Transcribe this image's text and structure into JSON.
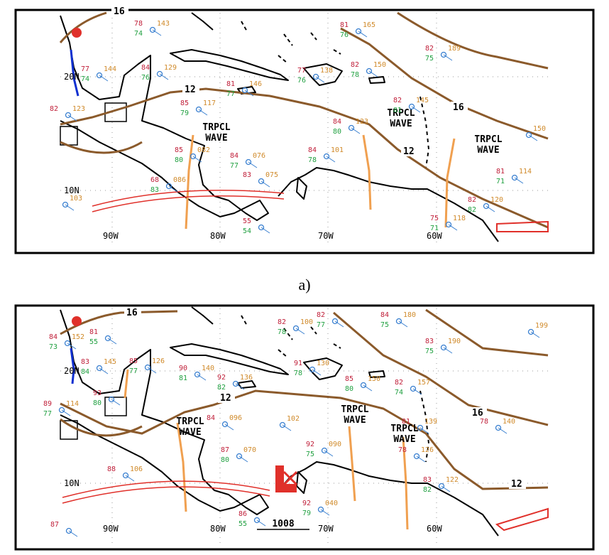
{
  "panels": [
    {
      "caption": "a)",
      "lon_labels": [
        "90W",
        "80W",
        "70W",
        "60W"
      ],
      "lat_labels": [
        "10N",
        "20N"
      ],
      "isobar_labels": [
        "16",
        "12",
        "16",
        "12"
      ],
      "waves": [
        [
          "TRPCL",
          "WAVE"
        ],
        [
          "TRPCL",
          "WAVE"
        ],
        [
          "TRPCL",
          "WAVE"
        ]
      ],
      "stations": [
        {
          "temperature": "78",
          "pressure": "143",
          "dewpoint": "74"
        },
        {
          "temperature": "84",
          "pressure": "129",
          "dewpoint": "76"
        },
        {
          "temperature": "77",
          "pressure": "144",
          "dewpoint": "74"
        },
        {
          "temperature": "85",
          "pressure": "117",
          "dewpoint": "79"
        },
        {
          "temperature": "81",
          "pressure": "146",
          "dewpoint": "77"
        },
        {
          "temperature": "77",
          "pressure": "138",
          "dewpoint": "76"
        },
        {
          "temperature": "81",
          "pressure": "165",
          "dewpoint": "76"
        },
        {
          "temperature": "82",
          "pressure": "150",
          "dewpoint": "78"
        },
        {
          "temperature": "82",
          "pressure": "189",
          "dewpoint": "75"
        },
        {
          "temperature": "84",
          "pressure": "123",
          "dewpoint": "80"
        },
        {
          "temperature": "85",
          "pressure": "082",
          "dewpoint": "80"
        },
        {
          "temperature": "84",
          "pressure": "076",
          "dewpoint": "77"
        },
        {
          "temperature": "83",
          "pressure": "075"
        },
        {
          "temperature": "84",
          "pressure": "101",
          "dewpoint": "78"
        },
        {
          "temperature": "82",
          "pressure": "145",
          "dewpoint": "81"
        },
        {
          "temperature": "81",
          "pressure": "114",
          "dewpoint": "71"
        },
        {
          "temperature": "82",
          "pressure": "120",
          "dewpoint": "82"
        },
        {
          "temperature": "55",
          "dewpoint": "54"
        },
        {
          "pressure": "103"
        },
        {
          "temperature": "82",
          "pressure": "123"
        },
        {
          "temperature": "68",
          "pressure": "086",
          "dewpoint": "83"
        },
        {
          "temperature": "75",
          "pressure": "118",
          "dewpoint": "71"
        },
        {
          "pressure": "150"
        }
      ]
    },
    {
      "lon_labels": [
        "90W",
        "80W",
        "70W",
        "60W"
      ],
      "lat_labels": [
        "10N",
        "20N"
      ],
      "isobar_labels": [
        "16",
        "12",
        "16",
        "12"
      ],
      "waves": [
        [
          "TRPCL",
          "WAVE"
        ],
        [
          "TRPCL",
          "WAVE"
        ],
        [
          "TRPCL",
          "WAVE"
        ]
      ],
      "low_pressure": "1008",
      "stations": [
        {
          "temperature": "84",
          "pressure": "152",
          "dewpoint": "73"
        },
        {
          "temperature": "81",
          "dewpoint": "55"
        },
        {
          "temperature": "83",
          "pressure": "145",
          "dewpoint": "84"
        },
        {
          "temperature": "85",
          "pressure": "126",
          "dewpoint": "77"
        },
        {
          "temperature": "90",
          "pressure": "140",
          "dewpoint": "81"
        },
        {
          "temperature": "92",
          "pressure": "136",
          "dewpoint": "82"
        },
        {
          "temperature": "82",
          "pressure": "100",
          "dewpoint": "78"
        },
        {
          "temperature": "82",
          "dewpoint": "77"
        },
        {
          "temperature": "84",
          "pressure": "180",
          "dewpoint": "75"
        },
        {
          "temperature": "83",
          "pressure": "190",
          "dewpoint": "75"
        },
        {
          "pressure": "199"
        },
        {
          "temperature": "91",
          "pressure": "130",
          "dewpoint": "78"
        },
        {
          "temperature": "85",
          "pressure": "150",
          "dewpoint": "80"
        },
        {
          "temperature": "82",
          "pressure": "157",
          "dewpoint": "74"
        },
        {
          "temperature": "81",
          "pressure": "139"
        },
        {
          "temperature": "78",
          "pressure": "126"
        },
        {
          "temperature": "78",
          "pressure": "140"
        },
        {
          "temperature": "87",
          "pressure": "070",
          "dewpoint": "80"
        },
        {
          "temperature": "84",
          "pressure": "096"
        },
        {
          "pressure": "102"
        },
        {
          "temperature": "92",
          "pressure": "090",
          "dewpoint": "75"
        },
        {
          "temperature": "88",
          "pressure": "106"
        },
        {
          "temperature": "93",
          "dewpoint": "80"
        },
        {
          "temperature": "89",
          "pressure": "114",
          "dewpoint": "77"
        },
        {
          "temperature": "92",
          "pressure": "040",
          "dewpoint": "79"
        },
        {
          "temperature": "83",
          "pressure": "122",
          "dewpoint": "82"
        },
        {
          "temperature": "87"
        },
        {
          "temperature": "86",
          "dewpoint": "55"
        }
      ]
    }
  ]
}
